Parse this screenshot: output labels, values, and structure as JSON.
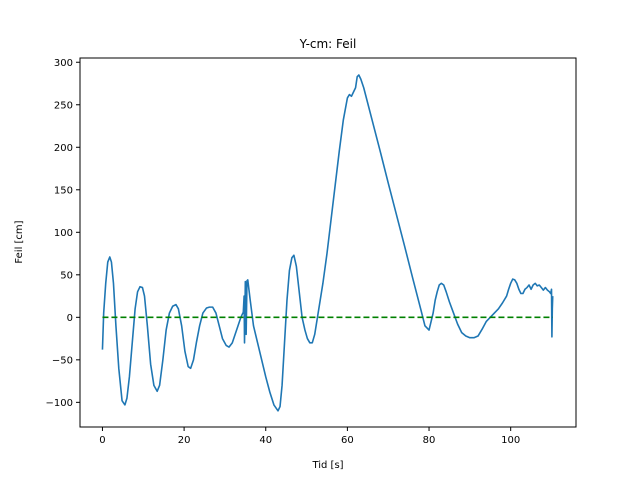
{
  "chart_data": {
    "type": "line",
    "title": "Y-cm: Feil",
    "xlabel": "Tid [s]",
    "ylabel": "Feil [cm]",
    "xlim": [
      -5.5,
      116
    ],
    "ylim": [
      -129,
      305
    ],
    "xticks": [
      0,
      20,
      40,
      60,
      80,
      100
    ],
    "xtick_labels": [
      "0",
      "20",
      "40",
      "60",
      "80",
      "100"
    ],
    "yticks": [
      -100,
      -50,
      0,
      50,
      100,
      150,
      200,
      250,
      300
    ],
    "ytick_labels": [
      "−100",
      "−50",
      "0",
      "50",
      "100",
      "150",
      "200",
      "250",
      "300"
    ],
    "grid": false,
    "series": [
      {
        "style": "solid",
        "color": "#1f77b4",
        "x": [
          0.0,
          0.3,
          0.8,
          1.3,
          1.8,
          2.2,
          2.7,
          3.3,
          4.0,
          4.8,
          5.5,
          6.0,
          6.6,
          7.3,
          8.0,
          8.6,
          9.2,
          9.8,
          10.3,
          11.0,
          11.8,
          12.6,
          13.4,
          14.0,
          14.8,
          15.6,
          16.4,
          17.2,
          18.0,
          18.6,
          19.4,
          20.2,
          21.0,
          21.6,
          22.3,
          23.0,
          23.8,
          24.6,
          25.5,
          26.2,
          27.0,
          27.8,
          28.6,
          29.4,
          30.3,
          31.0,
          31.8,
          32.5,
          33.2,
          33.9,
          34.5,
          34.7,
          34.8,
          35.0,
          35.2,
          35.4,
          35.6,
          36.2,
          37.0,
          38.0,
          39.0,
          40.0,
          41.0,
          42.0,
          43.0,
          43.5,
          44.0,
          44.6,
          45.2,
          45.8,
          46.4,
          46.9,
          47.5,
          48.2,
          48.9,
          49.6,
          50.2,
          50.8,
          51.4,
          52.0,
          53.0,
          54.0,
          55.0,
          56.0,
          57.0,
          58.0,
          59.0,
          60.0,
          60.5,
          61.0,
          61.5,
          62.0,
          62.4,
          62.8,
          63.3,
          64.0,
          66.0,
          68.0,
          70.0,
          72.0,
          74.0,
          76.0,
          78.0,
          79.0,
          80.0,
          80.5,
          81.0,
          81.5,
          82.0,
          82.5,
          83.0,
          83.6,
          84.2,
          85.0,
          86.0,
          87.0,
          88.0,
          89.0,
          90.0,
          91.0,
          92.0,
          93.0,
          94.0,
          95.0,
          96.0,
          97.0,
          98.0,
          99.0,
          99.5,
          100.0,
          100.5,
          101.0,
          101.5,
          102.0,
          102.5,
          103.0,
          103.5,
          104.0,
          104.5,
          105.0,
          105.5,
          106.0,
          106.5,
          107.0,
          107.5,
          108.0,
          108.5,
          109.0,
          109.5,
          109.8,
          110.0,
          110.1,
          110.2,
          110.3
        ],
        "y": [
          -38,
          5,
          40,
          65,
          71,
          65,
          40,
          -10,
          -60,
          -98,
          -103,
          -95,
          -70,
          -30,
          10,
          30,
          36,
          35,
          25,
          -10,
          -55,
          -80,
          -87,
          -80,
          -50,
          -15,
          5,
          13,
          15,
          10,
          -10,
          -40,
          -58,
          -60,
          -50,
          -30,
          -10,
          5,
          11,
          12,
          12,
          5,
          -10,
          -25,
          -33,
          -35,
          -30,
          -20,
          -10,
          0,
          6,
          25,
          -30,
          42,
          -20,
          43,
          44,
          20,
          -10,
          -30,
          -50,
          -70,
          -88,
          -103,
          -110,
          -105,
          -80,
          -30,
          20,
          55,
          70,
          73,
          60,
          30,
          0,
          -15,
          -25,
          -30,
          -30,
          -20,
          10,
          40,
          75,
          115,
          155,
          195,
          232,
          258,
          262,
          260,
          265,
          270,
          283,
          285,
          280,
          270,
          233,
          196,
          158,
          121,
          84,
          46,
          9,
          -10,
          -15,
          -5,
          5,
          20,
          30,
          38,
          40,
          38,
          30,
          18,
          5,
          -8,
          -18,
          -22,
          -24,
          -24,
          -22,
          -14,
          -5,
          0,
          5,
          10,
          17,
          25,
          33,
          40,
          45,
          44,
          40,
          33,
          28,
          28,
          33,
          35,
          38,
          33,
          38,
          40,
          37,
          38,
          35,
          32,
          35,
          32,
          30,
          28,
          33,
          -23,
          10,
          25
        ]
      },
      {
        "style": "dashed",
        "color": "#008000",
        "x": [
          0,
          110.3
        ],
        "y": [
          0,
          0
        ]
      }
    ]
  }
}
